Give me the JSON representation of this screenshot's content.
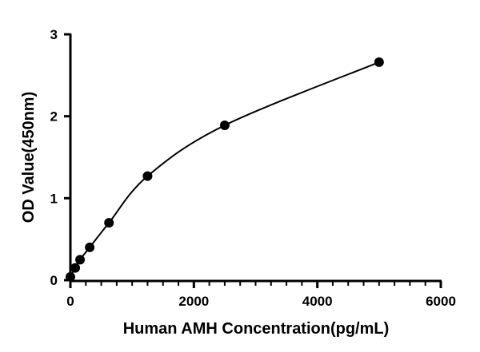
{
  "chart_data": {
    "type": "scatter",
    "x_label": "Human AMH Concentration(pg/mL)",
    "y_label": "OD Value(450nm)",
    "series": [
      {
        "x": [
          0,
          78.125,
          156.25,
          312.5,
          625,
          1250,
          2500,
          5000
        ],
        "values": [
          0.04,
          0.15,
          0.25,
          0.4,
          0.7,
          1.27,
          1.89,
          2.66
        ],
        "color": "#000000",
        "fit_curve": true
      }
    ],
    "xlim": [
      0,
      6000
    ],
    "xticks": [
      0,
      2000,
      4000,
      6000
    ],
    "xminorticks": [
      250,
      500,
      750,
      1000,
      1250,
      1500,
      1750,
      2250,
      2500,
      2750,
      3000,
      3250,
      3500,
      3750,
      4250,
      4500,
      4750,
      5000,
      5250,
      5500,
      5750
    ],
    "ylim": [
      0,
      3
    ],
    "yticks": [
      0,
      1,
      2,
      3
    ]
  }
}
